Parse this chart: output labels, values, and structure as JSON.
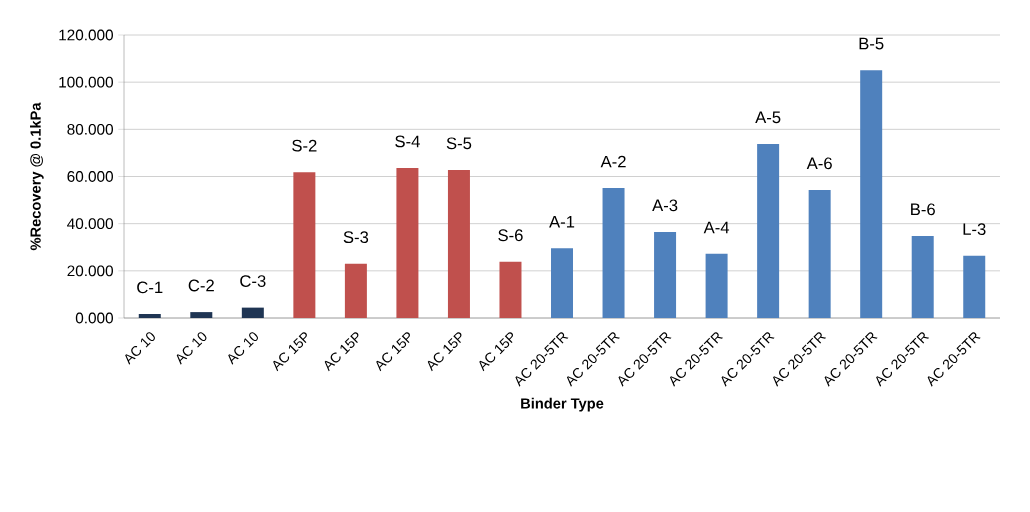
{
  "chart_data": {
    "type": "bar",
    "xlabel": "Binder Type",
    "ylabel": "%Recovery @ 0.1kPa",
    "categories": [
      "AC 10",
      "AC 10",
      "AC 10",
      "AC 15P",
      "AC 15P",
      "AC 15P",
      "AC 15P",
      "AC 15P",
      "AC 20-5TR",
      "AC 20-5TR",
      "AC 20-5TR",
      "AC 20-5TR",
      "AC 20-5TR",
      "AC 20-5TR",
      "AC 20-5TR",
      "AC 20-5TR",
      "AC 20-5TR"
    ],
    "values": [
      1.7,
      2.5,
      4.4,
      61.8,
      23.0,
      63.6,
      62.8,
      23.8,
      29.6,
      55.1,
      36.5,
      27.2,
      73.8,
      54.3,
      105.1,
      34.8,
      26.4
    ],
    "value_labels": [
      "C-1",
      "C-2",
      "C-3",
      "S-2",
      "S-3",
      "S-4",
      "S-5",
      "S-6",
      "A-1",
      "A-2",
      "A-3",
      "A-4",
      "A-5",
      "A-6",
      "B-5",
      "B-6",
      "L-3"
    ],
    "colors": [
      "#1f3553",
      "#1f3553",
      "#1f3553",
      "#c0504d",
      "#c0504d",
      "#c0504d",
      "#c0504d",
      "#c0504d",
      "#4f81bd",
      "#4f81bd",
      "#4f81bd",
      "#4f81bd",
      "#4f81bd",
      "#4f81bd",
      "#4f81bd",
      "#4f81bd",
      "#4f81bd"
    ],
    "ylim": [
      0,
      120
    ],
    "yticks": [
      {
        "value": 0,
        "label": "0.000"
      },
      {
        "value": 20,
        "label": "20.000"
      },
      {
        "value": 40,
        "label": "40.000"
      },
      {
        "value": 60,
        "label": "60.000"
      },
      {
        "value": 80,
        "label": "80.000"
      },
      {
        "value": 100,
        "label": "100.000"
      },
      {
        "value": 120,
        "label": "120.000"
      }
    ],
    "grid": "y"
  }
}
